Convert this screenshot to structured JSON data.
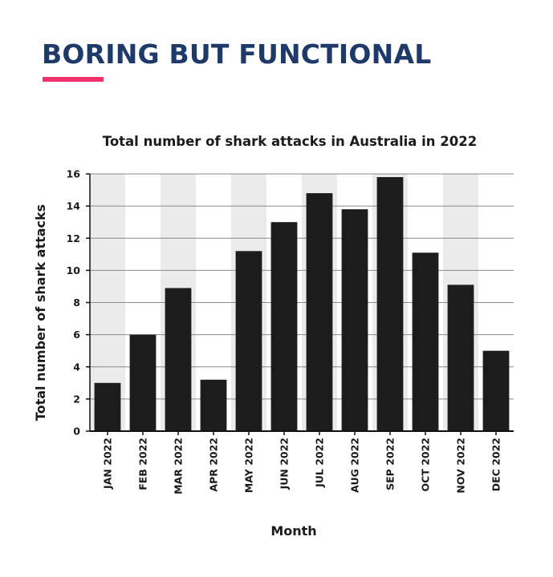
{
  "header": {
    "headline": "BORING BUT FUNCTIONAL",
    "headline_color": "#1e3a6b",
    "accent_color": "#f0336b"
  },
  "chart_data": {
    "type": "bar",
    "title": "Total number of shark attacks in Australia in 2022",
    "xlabel": "Month",
    "ylabel": "Total number of shark attacks",
    "categories": [
      "JAN 2022",
      "FEB 2022",
      "MAR 2022",
      "APR 2022",
      "MAY 2022",
      "JUN 2022",
      "JUL 2022",
      "AUG 2022",
      "SEP 2022",
      "OCT 2022",
      "NOV 2022",
      "DEC 2022"
    ],
    "values": [
      3,
      6,
      8.9,
      3.2,
      11.2,
      13,
      14.8,
      13.8,
      15.8,
      11.1,
      9.1,
      5
    ],
    "ylim": [
      0,
      16
    ],
    "yticks": [
      0,
      2,
      4,
      6,
      8,
      10,
      12,
      14,
      16
    ],
    "grid": true,
    "bar_color": "#1c1c1c",
    "band_color": "#ebebeb",
    "shaded_band_months": [
      "JAN 2022",
      "MAR 2022",
      "MAY 2022",
      "JUL 2022",
      "SEP 2022",
      "NOV 2022"
    ]
  }
}
